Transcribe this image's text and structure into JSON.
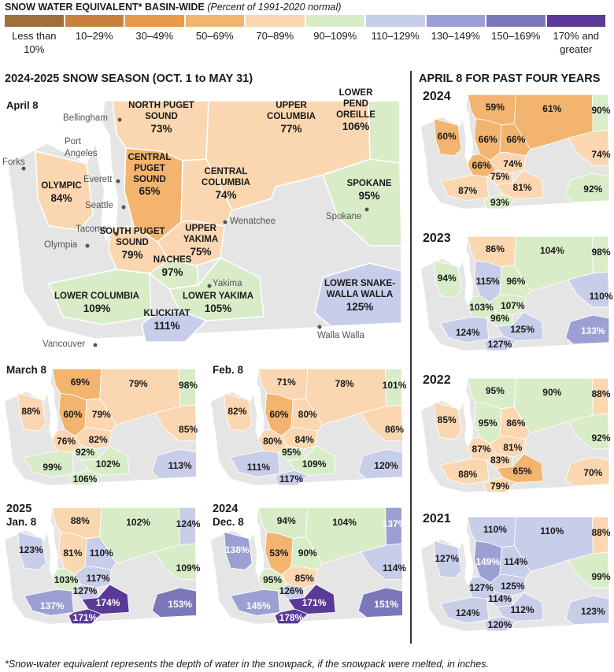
{
  "legend": {
    "title": "SNOW WATER EQUIVALENT* BASIN-WIDE",
    "subtitle": "(Percent of 1991-2020 normal)",
    "items": [
      {
        "label": "Less than 10%",
        "color": "#a0703a"
      },
      {
        "label": "10–29%",
        "color": "#c8823c"
      },
      {
        "label": "30–49%",
        "color": "#e89a48"
      },
      {
        "label": "50–69%",
        "color": "#f2b46e"
      },
      {
        "label": "70–89%",
        "color": "#fad7b0"
      },
      {
        "label": "90–109%",
        "color": "#d9ecc8"
      },
      {
        "label": "110–129%",
        "color": "#c8cdea"
      },
      {
        "label": "130–149%",
        "color": "#9b9fd3"
      },
      {
        "label": "150–169%",
        "color": "#7a78bb"
      },
      {
        "label": "170% and greater",
        "color": "#5a3a96"
      }
    ]
  },
  "main_section_title": "2024-2025 SNOW SEASON (OCT. 1 to MAY 31)",
  "right_section_title": "APRIL 8 FOR PAST FOUR YEARS",
  "main_map": {
    "label": "April 8",
    "regions": [
      {
        "name": "NORTH PUGET SOUND",
        "value": "73%"
      },
      {
        "name": "UPPER COLUMBIA",
        "value": "77%"
      },
      {
        "name": "LOWER PEND OREILLE",
        "value": "106%"
      },
      {
        "name": "OLYMPIC",
        "value": "84%"
      },
      {
        "name": "CENTRAL PUGET SOUND",
        "value": "65%"
      },
      {
        "name": "CENTRAL COLUMBIA",
        "value": "74%"
      },
      {
        "name": "SPOKANE",
        "value": "95%"
      },
      {
        "name": "SOUTH PUGET SOUND",
        "value": "79%"
      },
      {
        "name": "UPPER YAKIMA",
        "value": "75%"
      },
      {
        "name": "NACHES",
        "value": "97%"
      },
      {
        "name": "LOWER COLUMBIA",
        "value": "109%"
      },
      {
        "name": "LOWER YAKIMA",
        "value": "105%"
      },
      {
        "name": "LOWER SNAKE-WALLA WALLA",
        "value": "125%"
      },
      {
        "name": "KLICKITAT",
        "value": "111%"
      }
    ],
    "cities": [
      "Bellingham",
      "Port Angeles",
      "Forks",
      "Everett",
      "Seattle",
      "Tacoma",
      "Olympia",
      "Wenatchee",
      "Spokane",
      "Yakima",
      "Walla Walla",
      "Vancouver"
    ]
  },
  "small_maps": [
    {
      "label": "March 8",
      "values": [
        "69%",
        "79%",
        "98%",
        "88%",
        "60%",
        "79%",
        "85%",
        "76%",
        "82%",
        "92%",
        "99%",
        "102%",
        "106%",
        "113%"
      ]
    },
    {
      "label": "Feb. 8",
      "values": [
        "71%",
        "78%",
        "101%",
        "82%",
        "60%",
        "80%",
        "86%",
        "80%",
        "84%",
        "95%",
        "111%",
        "109%",
        "117%",
        "120%"
      ]
    },
    {
      "label_line1": "2025",
      "label": "Jan. 8",
      "values": [
        "88%",
        "102%",
        "124%",
        "123%",
        "81%",
        "110%",
        "109%",
        "103%",
        "117%",
        "127%",
        "137%",
        "174%",
        "171%",
        "153%"
      ]
    },
    {
      "label_line1": "2024",
      "label": "Dec. 8",
      "values": [
        "94%",
        "104%",
        "137%",
        "138%",
        "53%",
        "90%",
        "114%",
        "95%",
        "85%",
        "126%",
        "145%",
        "171%",
        "178%",
        "151%"
      ]
    }
  ],
  "past_years": [
    {
      "label": "2024",
      "values": [
        "59%",
        "61%",
        "90%",
        "60%",
        "66%",
        "66%",
        "74%",
        "66%",
        "74%",
        "75%",
        "87%",
        "81%",
        "93%",
        "92%"
      ]
    },
    {
      "label": "2023",
      "values": [
        "86%",
        "104%",
        "98%",
        "94%",
        "115%",
        "96%",
        "110%",
        "103%",
        "107%",
        "96%",
        "124%",
        "125%",
        "127%",
        "133%"
      ]
    },
    {
      "label": "2022",
      "values": [
        "95%",
        "90%",
        "88%",
        "85%",
        "95%",
        "86%",
        "92%",
        "87%",
        "81%",
        "83%",
        "88%",
        "65%",
        "79%",
        "70%"
      ]
    },
    {
      "label": "2021",
      "values": [
        "110%",
        "110%",
        "88%",
        "127%",
        "149%",
        "114%",
        "99%",
        "127%",
        "125%",
        "114%",
        "124%",
        "112%",
        "120%",
        "123%"
      ]
    }
  ],
  "footnote": "*Snow-water equivalent represents the depth of water in the snowpack, if the snowpack were melted, in inches."
}
